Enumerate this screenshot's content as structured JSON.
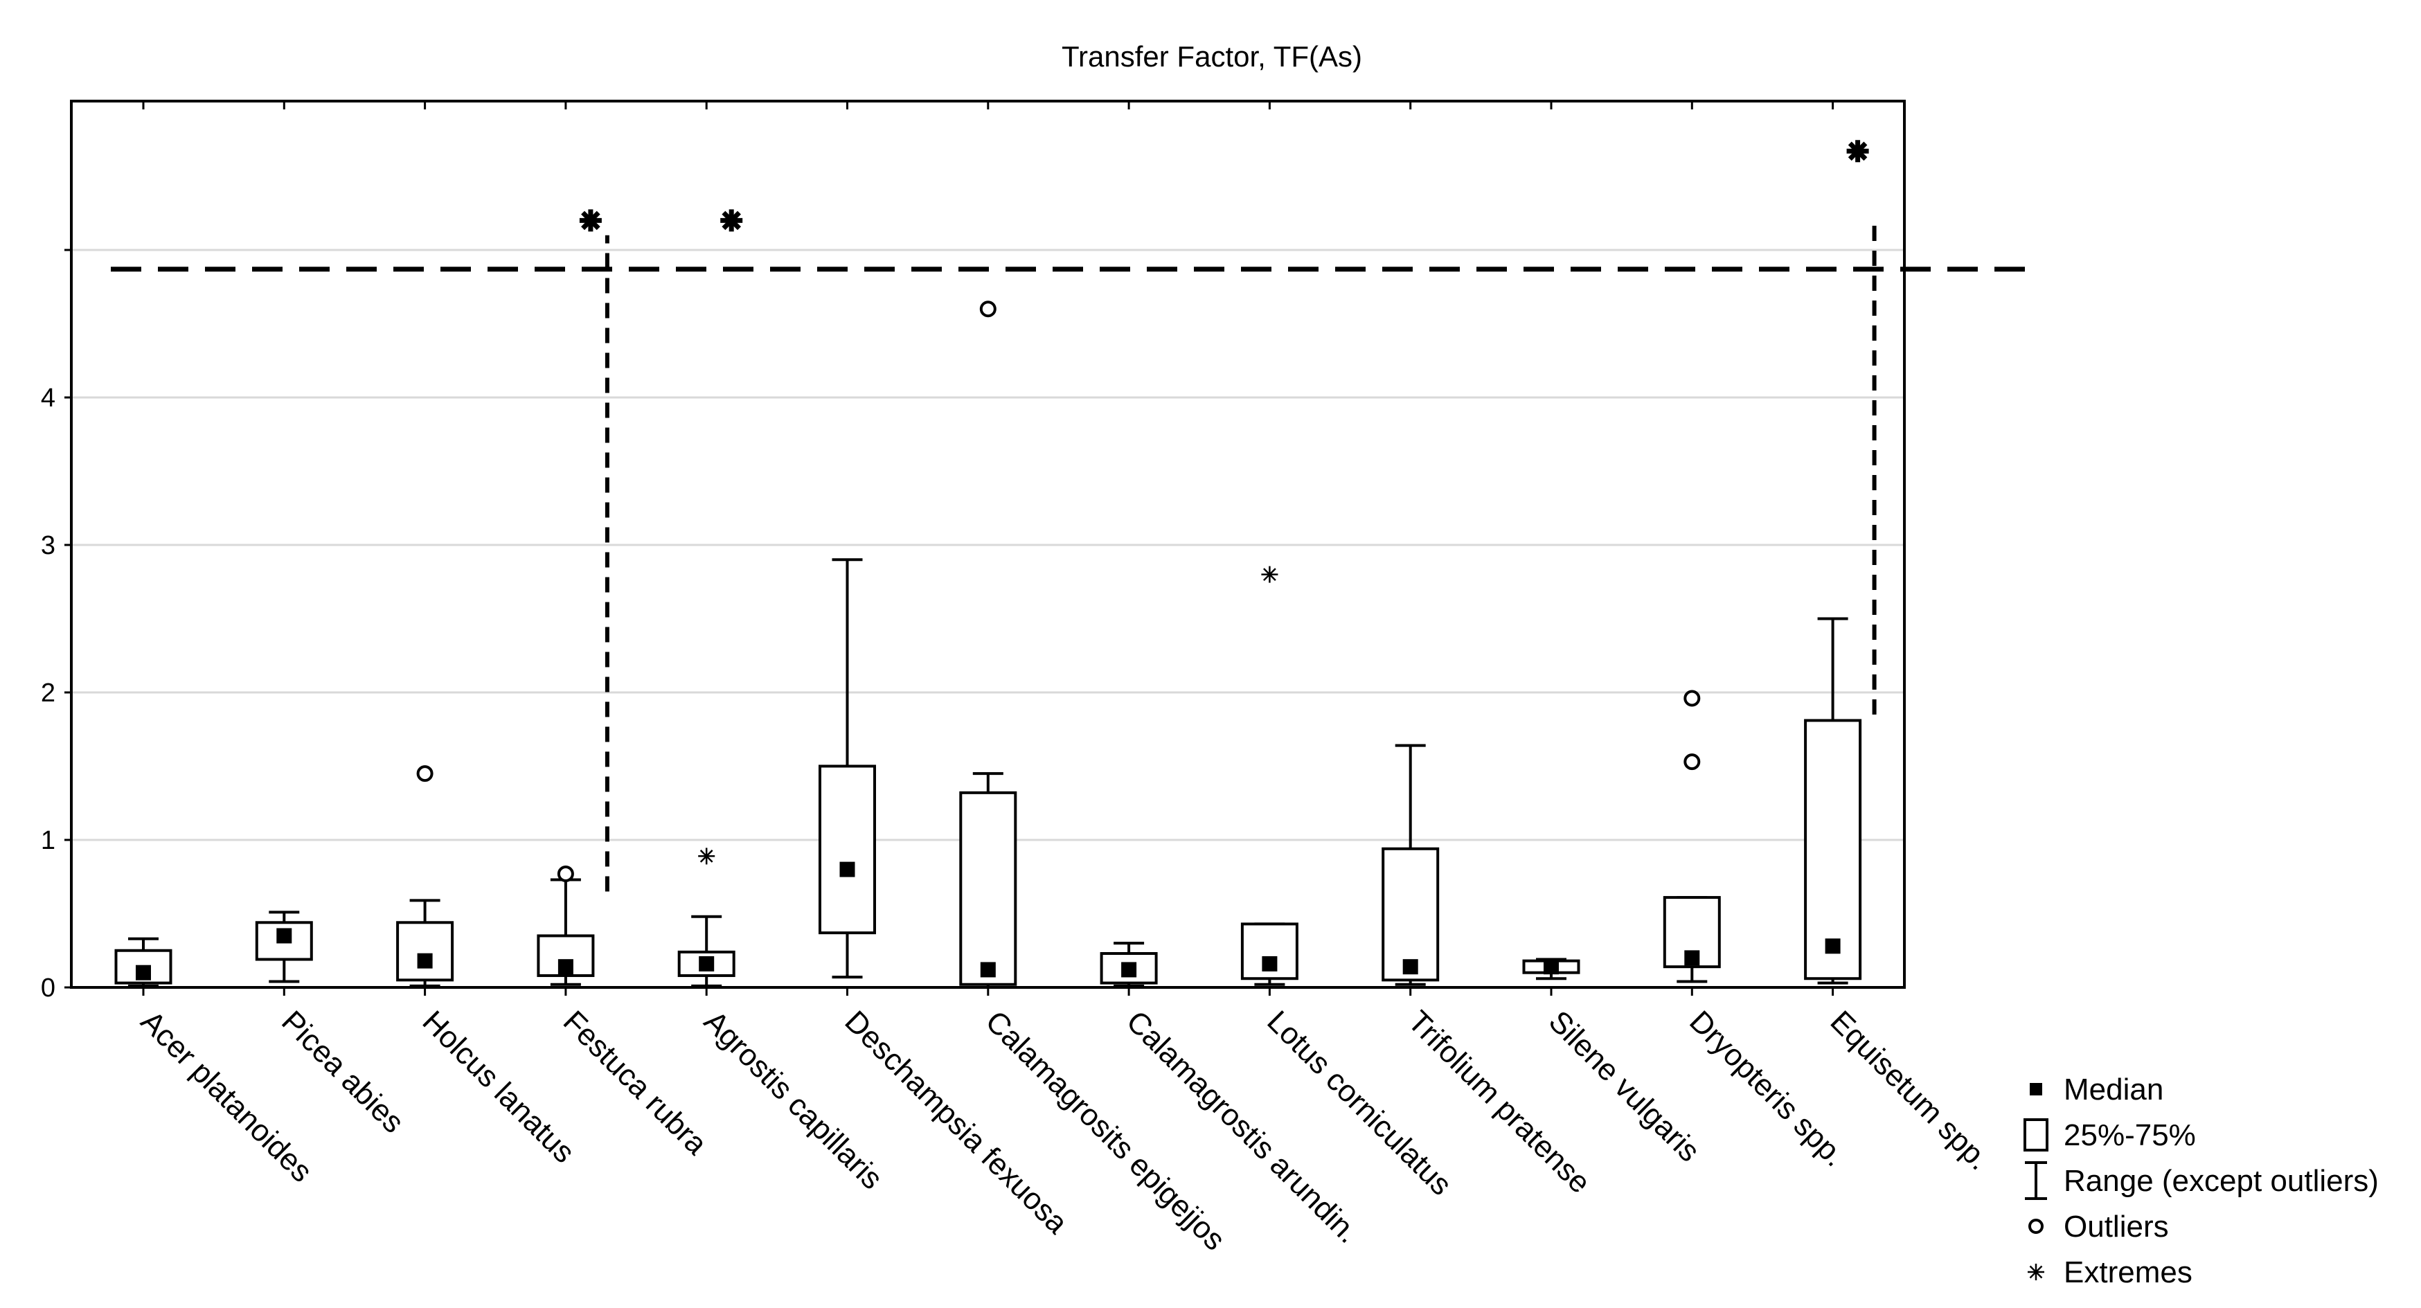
{
  "chart_data": {
    "type": "boxplot",
    "title": "Transfer Factor,  TF(As)",
    "xlabel": "",
    "ylabel": "",
    "ylim": [
      0,
      6
    ],
    "yticks": [
      0,
      1,
      2,
      3,
      4
    ],
    "grid": true,
    "legend_position": "bottom-right",
    "categories": [
      "Acer platanoides",
      "Picea abies",
      "Holcus lanatus",
      "Festuca rubra",
      "Agrostis capillaris",
      "Deschampsia fexuosa",
      "Calamagrosits epigejjos",
      "Calamagrostis arundin.",
      "Lotus corniculatus",
      "Trifolium pratense",
      "Silene vulgaris",
      "Dryopteris spp.",
      "Equisetum spp."
    ],
    "series": [
      {
        "name": "Acer platanoides",
        "median": 0.1,
        "q1": 0.03,
        "q3": 0.25,
        "min": 0.01,
        "max": 0.33,
        "outliers": [],
        "extremes": []
      },
      {
        "name": "Picea abies",
        "median": 0.35,
        "q1": 0.19,
        "q3": 0.44,
        "min": 0.04,
        "max": 0.51,
        "outliers": [],
        "extremes": []
      },
      {
        "name": "Holcus lanatus",
        "median": 0.18,
        "q1": 0.05,
        "q3": 0.44,
        "min": 0.01,
        "max": 0.59,
        "outliers": [
          1.45
        ],
        "extremes": []
      },
      {
        "name": "Festuca rubra",
        "median": 0.14,
        "q1": 0.08,
        "q3": 0.35,
        "min": 0.02,
        "max": 0.73,
        "outliers": [
          0.77
        ],
        "extremes": [
          5.2
        ]
      },
      {
        "name": "Agrostis capillaris",
        "median": 0.16,
        "q1": 0.08,
        "q3": 0.24,
        "min": 0.01,
        "max": 0.48,
        "outliers": [],
        "extremes": [
          0.89,
          5.2
        ]
      },
      {
        "name": "Deschampsia fexuosa",
        "median": 0.8,
        "q1": 0.37,
        "q3": 1.5,
        "min": 0.07,
        "max": 2.9,
        "outliers": [],
        "extremes": []
      },
      {
        "name": "Calamagrosits epigejjos",
        "median": 0.12,
        "q1": 0.02,
        "q3": 1.32,
        "min": 0.0,
        "max": 1.45,
        "outliers": [
          4.6
        ],
        "extremes": []
      },
      {
        "name": "Calamagrostis arundin.",
        "median": 0.12,
        "q1": 0.03,
        "q3": 0.23,
        "min": 0.01,
        "max": 0.3,
        "outliers": [],
        "extremes": []
      },
      {
        "name": "Lotus corniculatus",
        "median": 0.16,
        "q1": 0.06,
        "q3": 0.43,
        "min": 0.02,
        "max": 0.43,
        "outliers": [],
        "extremes": [
          2.8
        ]
      },
      {
        "name": "Trifolium pratense",
        "median": 0.14,
        "q1": 0.05,
        "q3": 0.94,
        "min": 0.02,
        "max": 1.64,
        "outliers": [],
        "extremes": []
      },
      {
        "name": "Silene vulgaris",
        "median": 0.14,
        "q1": 0.1,
        "q3": 0.18,
        "min": 0.06,
        "max": 0.19,
        "outliers": [],
        "extremes": []
      },
      {
        "name": "Dryopteris spp.",
        "median": 0.2,
        "q1": 0.14,
        "q3": 0.61,
        "min": 0.04,
        "max": 0.61,
        "outliers": [
          1.53,
          1.96
        ],
        "extremes": []
      },
      {
        "name": "Equisetum spp.",
        "median": 0.28,
        "q1": 0.06,
        "q3": 1.81,
        "min": 0.03,
        "max": 2.5,
        "outliers": [],
        "extremes": [
          5.67
        ]
      }
    ],
    "reference_line": {
      "style": "dashed",
      "y": 4.87
    },
    "break_lines": [
      {
        "category": "Festuca rubra",
        "from": 0.65,
        "to": 5.1
      },
      {
        "category": "Equisetum spp.",
        "from": 1.85,
        "to": 5.2
      }
    ],
    "legend": [
      {
        "symbol": "filled-square",
        "label": "Median"
      },
      {
        "symbol": "box",
        "label": "25%-75%"
      },
      {
        "symbol": "whisker",
        "label": "Range (except outliers)"
      },
      {
        "symbol": "circle",
        "label": "Outliers"
      },
      {
        "symbol": "asterisk",
        "label": "Extremes"
      }
    ]
  }
}
